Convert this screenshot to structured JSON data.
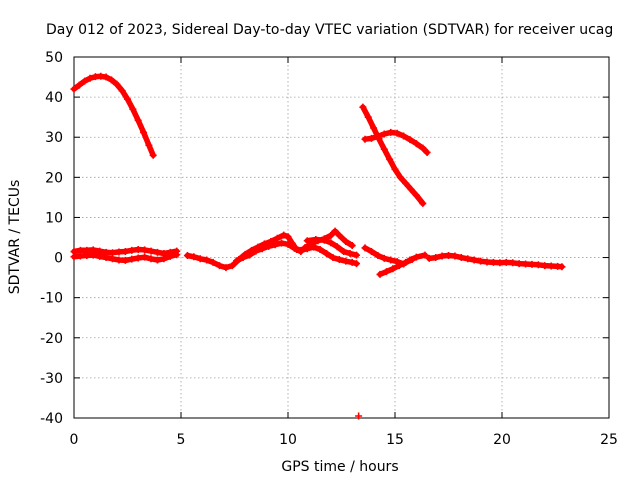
{
  "chart_data": {
    "type": "scatter",
    "title": "Day 012 of 2023, Sidereal Day-to-day VTEC variation (SDTVAR) for receiver ucag",
    "xlabel": "GPS time / hours",
    "ylabel": "SDTVAR / TECUs",
    "xlim": [
      0,
      25
    ],
    "ylim": [
      -40,
      50
    ],
    "x_ticks": [
      0,
      5,
      10,
      15,
      20,
      25
    ],
    "y_ticks": [
      -40,
      -30,
      -20,
      -10,
      0,
      10,
      20,
      30,
      40,
      50
    ],
    "grid": true,
    "marker": "+",
    "series": [
      {
        "name": "arc-a-high",
        "color": "#ff0000",
        "points": [
          [
            0,
            42
          ],
          [
            0.25,
            43
          ],
          [
            0.5,
            44
          ],
          [
            0.75,
            44.7
          ],
          [
            1.0,
            45.1
          ],
          [
            1.25,
            45.2
          ],
          [
            1.5,
            45
          ],
          [
            1.75,
            44.3
          ],
          [
            2.0,
            43.2
          ],
          [
            2.25,
            41.6
          ],
          [
            2.5,
            39.5
          ],
          [
            2.75,
            37
          ],
          [
            3.0,
            34.2
          ],
          [
            3.25,
            31.2
          ],
          [
            3.5,
            28
          ],
          [
            3.7,
            25.5
          ]
        ]
      },
      {
        "name": "arc-b-descending",
        "color": "#ff0000",
        "points": [
          [
            13.5,
            37.5
          ],
          [
            13.75,
            35
          ],
          [
            14.0,
            32.3
          ],
          [
            14.25,
            29.6
          ],
          [
            14.5,
            27
          ],
          [
            14.75,
            24.5
          ],
          [
            15.0,
            22
          ],
          [
            15.25,
            20
          ],
          [
            15.5,
            18.5
          ],
          [
            15.75,
            17
          ],
          [
            16.0,
            15.5
          ],
          [
            16.3,
            13.5
          ]
        ]
      },
      {
        "name": "arc-c-hump",
        "color": "#ff0000",
        "points": [
          [
            13.6,
            29.5
          ],
          [
            13.9,
            29.7
          ],
          [
            14.2,
            30.2
          ],
          [
            14.5,
            30.8
          ],
          [
            14.8,
            31.2
          ],
          [
            15.1,
            31
          ],
          [
            15.4,
            30.3
          ],
          [
            15.7,
            29.4
          ],
          [
            16.0,
            28.4
          ],
          [
            16.3,
            27.3
          ],
          [
            16.5,
            26.2
          ]
        ]
      },
      {
        "name": "arc-d-zero-upper",
        "color": "#ff0000",
        "points": [
          [
            0,
            1.5
          ],
          [
            0.3,
            1.8
          ],
          [
            0.6,
            1.8
          ],
          [
            0.9,
            1.9
          ],
          [
            1.2,
            1.6
          ],
          [
            1.5,
            1.3
          ],
          [
            1.8,
            1.2
          ],
          [
            2.1,
            1.4
          ],
          [
            2.4,
            1.5
          ],
          [
            2.7,
            1.8
          ],
          [
            3.0,
            2
          ],
          [
            3.3,
            1.9
          ],
          [
            3.6,
            1.6
          ],
          [
            3.9,
            1.3
          ],
          [
            4.2,
            1
          ],
          [
            4.5,
            1.3
          ],
          [
            4.8,
            1.6
          ]
        ]
      },
      {
        "name": "arc-e-zero-lower",
        "color": "#ff0000",
        "points": [
          [
            0,
            0.2
          ],
          [
            0.3,
            0.4
          ],
          [
            0.6,
            0.5
          ],
          [
            0.9,
            0.6
          ],
          [
            1.2,
            0.3
          ],
          [
            1.5,
            0
          ],
          [
            1.8,
            -0.3
          ],
          [
            2.1,
            -0.6
          ],
          [
            2.4,
            -0.7
          ],
          [
            2.7,
            -0.4
          ],
          [
            3.0,
            -0.1
          ],
          [
            3.3,
            0.1
          ],
          [
            3.6,
            -0.3
          ],
          [
            3.9,
            -0.6
          ],
          [
            4.2,
            -0.3
          ],
          [
            4.5,
            0.3
          ],
          [
            4.8,
            0.7
          ]
        ]
      },
      {
        "name": "arc-f-trough-rise",
        "color": "#ff0000",
        "points": [
          [
            5.3,
            0.5
          ],
          [
            5.6,
            0.2
          ],
          [
            5.9,
            -0.3
          ],
          [
            6.2,
            -0.6
          ],
          [
            6.5,
            -1.2
          ],
          [
            6.8,
            -2
          ],
          [
            7.1,
            -2.5
          ],
          [
            7.4,
            -2
          ],
          [
            7.7,
            -0.5
          ],
          [
            8.0,
            0.8
          ],
          [
            8.3,
            1.8
          ],
          [
            8.6,
            2.6
          ],
          [
            8.9,
            3.4
          ],
          [
            9.2,
            4
          ],
          [
            9.5,
            4.8
          ],
          [
            9.8,
            5.6
          ],
          [
            10.0,
            5.2
          ],
          [
            10.2,
            3.5
          ],
          [
            10.4,
            2
          ],
          [
            10.6,
            1.5
          ],
          [
            10.8,
            2.5
          ],
          [
            11.1,
            3.4
          ],
          [
            11.4,
            4.2
          ],
          [
            11.7,
            4.7
          ],
          [
            12.0,
            5.5
          ],
          [
            12.2,
            6.6
          ],
          [
            12.4,
            5.5
          ],
          [
            12.7,
            4
          ],
          [
            13.0,
            3
          ]
        ]
      },
      {
        "name": "arc-g-wave",
        "color": "#ff0000",
        "points": [
          [
            7.6,
            -0.8
          ],
          [
            7.9,
            0
          ],
          [
            8.2,
            0.6
          ],
          [
            8.5,
            1.6
          ],
          [
            8.8,
            2.2
          ],
          [
            9.1,
            2.8
          ],
          [
            9.4,
            3.2
          ],
          [
            9.7,
            3.6
          ],
          [
            10.0,
            3.3
          ],
          [
            10.3,
            2.3
          ],
          [
            10.6,
            1.8
          ],
          [
            10.9,
            2.2
          ],
          [
            11.2,
            2.6
          ],
          [
            11.5,
            2
          ],
          [
            11.8,
            1
          ],
          [
            12.1,
            0
          ],
          [
            12.4,
            -0.5
          ],
          [
            12.7,
            -0.9
          ],
          [
            13.0,
            -1.2
          ],
          [
            13.2,
            -1.5
          ]
        ]
      },
      {
        "name": "arc-h-mid-branch",
        "color": "#ff0000",
        "points": [
          [
            10.9,
            4.2
          ],
          [
            11.3,
            4.5
          ],
          [
            11.7,
            4.3
          ],
          [
            12.0,
            3.7
          ],
          [
            12.3,
            2.7
          ],
          [
            12.6,
            1.5
          ],
          [
            12.9,
            1
          ],
          [
            13.2,
            0.6
          ]
        ]
      },
      {
        "name": "arc-i-dip",
        "color": "#ff0000",
        "points": [
          [
            13.6,
            2.4
          ],
          [
            13.9,
            1.5
          ],
          [
            14.2,
            0.5
          ],
          [
            14.5,
            -0.2
          ],
          [
            14.8,
            -0.6
          ],
          [
            15.1,
            -1
          ],
          [
            15.4,
            -1.6
          ],
          [
            15.7,
            -0.6
          ],
          [
            16.0,
            0.1
          ],
          [
            16.4,
            0.6
          ]
        ]
      },
      {
        "name": "arc-j-low",
        "color": "#ff0000",
        "points": [
          [
            14.3,
            -4.2
          ],
          [
            14.6,
            -3.5
          ],
          [
            14.9,
            -2.8
          ],
          [
            15.2,
            -2
          ],
          [
            15.5,
            -1.2
          ],
          [
            15.8,
            -0.5
          ]
        ]
      },
      {
        "name": "arc-k-tail",
        "color": "#ff0000",
        "points": [
          [
            16.6,
            -0.2
          ],
          [
            16.9,
            0
          ],
          [
            17.2,
            0.4
          ],
          [
            17.5,
            0.5
          ],
          [
            17.8,
            0.4
          ],
          [
            18.1,
            0
          ],
          [
            18.4,
            -0.3
          ],
          [
            18.7,
            -0.6
          ],
          [
            19.0,
            -0.9
          ],
          [
            19.3,
            -1.1
          ],
          [
            19.6,
            -1.2
          ],
          [
            19.9,
            -1.3
          ],
          [
            20.2,
            -1.2
          ],
          [
            20.5,
            -1.3
          ],
          [
            20.8,
            -1.5
          ],
          [
            21.1,
            -1.6
          ],
          [
            21.4,
            -1.7
          ],
          [
            21.7,
            -1.8
          ],
          [
            22.0,
            -2
          ],
          [
            22.3,
            -2.1
          ],
          [
            22.6,
            -2.2
          ],
          [
            22.8,
            -2.3
          ]
        ]
      },
      {
        "name": "outlier",
        "color": "#ff0000",
        "points": [
          [
            13.3,
            -39.5
          ]
        ]
      }
    ]
  }
}
